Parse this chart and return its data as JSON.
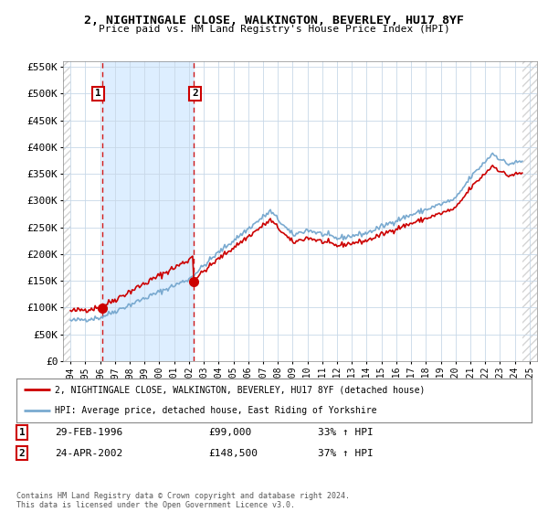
{
  "title": "2, NIGHTINGALE CLOSE, WALKINGTON, BEVERLEY, HU17 8YF",
  "subtitle": "Price paid vs. HM Land Registry's House Price Index (HPI)",
  "xlim": [
    1993.5,
    2025.5
  ],
  "ylim": [
    0,
    560000
  ],
  "yticks": [
    0,
    50000,
    100000,
    150000,
    200000,
    250000,
    300000,
    350000,
    400000,
    450000,
    500000,
    550000
  ],
  "ytick_labels": [
    "£0",
    "£50K",
    "£100K",
    "£150K",
    "£200K",
    "£250K",
    "£300K",
    "£350K",
    "£400K",
    "£450K",
    "£500K",
    "£550K"
  ],
  "xticks": [
    1994,
    1995,
    1996,
    1997,
    1998,
    1999,
    2000,
    2001,
    2002,
    2003,
    2004,
    2005,
    2006,
    2007,
    2008,
    2009,
    2010,
    2011,
    2012,
    2013,
    2014,
    2015,
    2016,
    2017,
    2018,
    2019,
    2020,
    2021,
    2022,
    2023,
    2024,
    2025
  ],
  "sale1_x": 1996.17,
  "sale1_y": 99000,
  "sale1_label": "1",
  "sale1_date": "29-FEB-1996",
  "sale1_price": "£99,000",
  "sale1_hpi": "33% ↑ HPI",
  "sale2_x": 2002.31,
  "sale2_y": 148500,
  "sale2_label": "2",
  "sale2_date": "24-APR-2002",
  "sale2_price": "£148,500",
  "sale2_hpi": "37% ↑ HPI",
  "property_color": "#cc0000",
  "hpi_color": "#7aaad0",
  "shaded_region_color": "#ddeeff",
  "grid_color": "#c8d8e8",
  "background_color": "#ffffff",
  "legend_label1": "2, NIGHTINGALE CLOSE, WALKINGTON, BEVERLEY, HU17 8YF (detached house)",
  "legend_label2": "HPI: Average price, detached house, East Riding of Yorkshire",
  "footer_text": "Contains HM Land Registry data © Crown copyright and database right 2024.\nThis data is licensed under the Open Government Licence v3.0."
}
